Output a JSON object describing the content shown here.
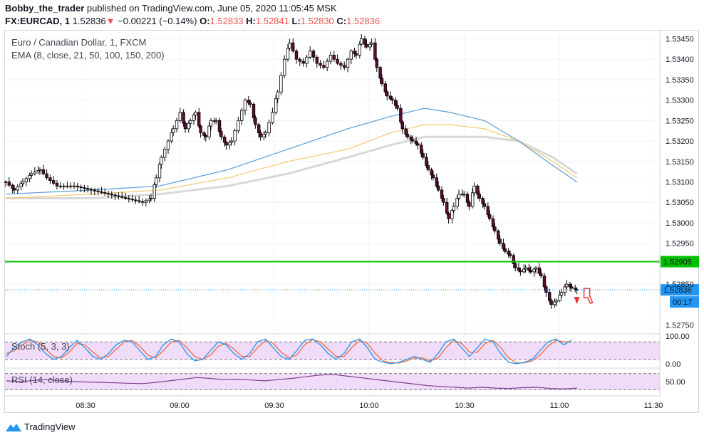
{
  "header": {
    "author": "Bobby_the_trader",
    "published": "published on TradingView.com, June 05, 2020 11:05:45 MSK",
    "symbol": "FX:EURCAD, 1",
    "last": "1.52836",
    "arrow": "▼",
    "change": "−0.00221 (−0.14%)",
    "o_label": "O:",
    "o_value": "1.52833",
    "h_label": "H:",
    "h_value": "1.52841",
    "l_label": "L:",
    "l_value": "1.52830",
    "c_label": "C:",
    "c_value": "1.52836"
  },
  "legend": {
    "line1": "Euro / Canadian Dollar, 1, FXCM",
    "line2": "EMA (8, close, 21, 50, 100, 150, 200)",
    "stoch": "Stoch (5, 3, 3)",
    "rsi": "RSI (14, close)"
  },
  "footer": {
    "brand": "TradingView"
  },
  "colors": {
    "up": "#ffffff",
    "down": "#5d0f3a",
    "level": "#00c000",
    "ema_fast": "#5b9bd5",
    "ema_mid": "#f5c96a",
    "ema_slow": "#d8d8d8",
    "stoch_k": "#2196f3",
    "stoch_d": "#ef6c3c",
    "rsi": "#7e3f8f",
    "band": "#f0dcf9",
    "price_tag": "#2196f3"
  },
  "chart_data": {
    "type": "candlestick",
    "x_ticks": [
      "08:30",
      "09:00",
      "09:30",
      "10:00",
      "10:30",
      "11:00",
      "11:30"
    ],
    "y_ticks": [
      "1.53450",
      "1.53400",
      "1.53350",
      "1.53300",
      "1.53250",
      "1.53200",
      "1.53150",
      "1.53100",
      "1.53050",
      "1.53000",
      "1.52950",
      "1.52850",
      "1.52750"
    ],
    "ylim": [
      1.5273,
      1.5347
    ],
    "level": {
      "value": 1.52905,
      "label": "1.52905"
    },
    "last_price": {
      "value": 1.52836,
      "label": "1.52836",
      "timer": "00:17"
    },
    "price_path": [
      [
        0,
        1.531
      ],
      [
        10,
        1.5308
      ],
      [
        20,
        1.531
      ],
      [
        30,
        1.5312
      ],
      [
        40,
        1.5313
      ],
      [
        48,
        1.5311
      ],
      [
        60,
        1.5309
      ],
      [
        80,
        1.5309
      ],
      [
        100,
        1.5308
      ],
      [
        120,
        1.5307
      ],
      [
        140,
        1.5306
      ],
      [
        160,
        1.5305
      ],
      [
        170,
        1.5306
      ],
      [
        176,
        1.5311
      ],
      [
        182,
        1.5316
      ],
      [
        190,
        1.532
      ],
      [
        196,
        1.5323
      ],
      [
        204,
        1.5327
      ],
      [
        210,
        1.5323
      ],
      [
        216,
        1.5325
      ],
      [
        222,
        1.5327
      ],
      [
        228,
        1.5322
      ],
      [
        234,
        1.5321
      ],
      [
        240,
        1.5325
      ],
      [
        246,
        1.5325
      ],
      [
        252,
        1.5321
      ],
      [
        258,
        1.5319
      ],
      [
        264,
        1.532
      ],
      [
        272,
        1.5325
      ],
      [
        280,
        1.533
      ],
      [
        286,
        1.5329
      ],
      [
        292,
        1.5324
      ],
      [
        298,
        1.5321
      ],
      [
        304,
        1.5322
      ],
      [
        312,
        1.5327
      ],
      [
        318,
        1.5332
      ],
      [
        326,
        1.534
      ],
      [
        332,
        1.5344
      ],
      [
        340,
        1.534
      ],
      [
        348,
        1.5339
      ],
      [
        356,
        1.5342
      ],
      [
        364,
        1.5339
      ],
      [
        372,
        1.5338
      ],
      [
        380,
        1.5341
      ],
      [
        388,
        1.5339
      ],
      [
        396,
        1.5338
      ],
      [
        404,
        1.5342
      ],
      [
        410,
        1.5341
      ],
      [
        416,
        1.5345
      ],
      [
        422,
        1.5343
      ],
      [
        428,
        1.5344
      ],
      [
        434,
        1.5338
      ],
      [
        440,
        1.5334
      ],
      [
        446,
        1.5331
      ],
      [
        452,
        1.533
      ],
      [
        458,
        1.5328
      ],
      [
        464,
        1.5323
      ],
      [
        470,
        1.5321
      ],
      [
        476,
        1.532
      ],
      [
        482,
        1.5319
      ],
      [
        488,
        1.5316
      ],
      [
        494,
        1.5313
      ],
      [
        500,
        1.5311
      ],
      [
        506,
        1.5308
      ],
      [
        512,
        1.5305
      ],
      [
        518,
        1.5301
      ],
      [
        524,
        1.5304
      ],
      [
        530,
        1.5307
      ],
      [
        536,
        1.5307
      ],
      [
        542,
        1.5304
      ],
      [
        548,
        1.5309
      ],
      [
        554,
        1.5306
      ],
      [
        560,
        1.5304
      ],
      [
        566,
        1.5301
      ],
      [
        572,
        1.5298
      ],
      [
        578,
        1.5295
      ],
      [
        584,
        1.5293
      ],
      [
        590,
        1.5292
      ],
      [
        596,
        1.5289
      ],
      [
        602,
        1.5288
      ],
      [
        608,
        1.5289
      ],
      [
        614,
        1.5288
      ],
      [
        620,
        1.5289
      ],
      [
        626,
        1.5287
      ],
      [
        632,
        1.5283
      ],
      [
        638,
        1.528
      ],
      [
        644,
        1.5281
      ],
      [
        650,
        1.5283
      ],
      [
        656,
        1.5285
      ],
      [
        662,
        1.5284
      ],
      [
        668,
        1.52836
      ]
    ],
    "ema_fast": [
      [
        0,
        1.5307
      ],
      [
        100,
        1.5308
      ],
      [
        180,
        1.5309
      ],
      [
        260,
        1.5313
      ],
      [
        330,
        1.5318
      ],
      [
        400,
        1.5323
      ],
      [
        450,
        1.5326
      ],
      [
        490,
        1.5328
      ],
      [
        520,
        1.5327
      ],
      [
        560,
        1.5325
      ],
      [
        600,
        1.532
      ],
      [
        640,
        1.5314
      ],
      [
        668,
        1.531
      ]
    ],
    "ema_mid": [
      [
        0,
        1.5306
      ],
      [
        100,
        1.5307
      ],
      [
        180,
        1.5308
      ],
      [
        260,
        1.5311
      ],
      [
        330,
        1.5315
      ],
      [
        400,
        1.5318
      ],
      [
        450,
        1.5322
      ],
      [
        490,
        1.5324
      ],
      [
        520,
        1.5324
      ],
      [
        560,
        1.5323
      ],
      [
        600,
        1.532
      ],
      [
        640,
        1.5315
      ],
      [
        668,
        1.5311
      ]
    ],
    "ema_slow": [
      [
        0,
        1.5306
      ],
      [
        100,
        1.5306
      ],
      [
        180,
        1.5307
      ],
      [
        260,
        1.5309
      ],
      [
        330,
        1.5312
      ],
      [
        400,
        1.5316
      ],
      [
        450,
        1.5319
      ],
      [
        490,
        1.5321
      ],
      [
        520,
        1.5321
      ],
      [
        560,
        1.5321
      ],
      [
        600,
        1.532
      ],
      [
        640,
        1.5316
      ],
      [
        668,
        1.5312
      ]
    ],
    "stoch": {
      "ticks": [
        "100.00",
        "0.00"
      ],
      "band": [
        20,
        80
      ],
      "k": [
        30,
        60,
        80,
        90,
        70,
        40,
        20,
        30,
        60,
        85,
        60,
        30,
        20,
        40,
        70,
        85,
        80,
        50,
        20,
        30,
        70,
        90,
        80,
        40,
        15,
        20,
        50,
        80,
        70,
        40,
        20,
        40,
        80,
        90,
        60,
        30,
        20,
        50,
        85,
        90,
        70,
        40,
        20,
        40,
        80,
        90,
        60,
        20,
        10,
        5,
        10,
        20,
        30,
        20,
        10,
        40,
        80,
        90,
        60,
        30,
        60,
        90,
        80,
        40,
        10,
        5,
        10,
        20,
        50,
        80,
        90,
        70,
        85
      ],
      "d": [
        40,
        50,
        70,
        85,
        80,
        55,
        30,
        25,
        45,
        75,
        70,
        45,
        25,
        30,
        55,
        80,
        85,
        65,
        35,
        25,
        50,
        80,
        85,
        60,
        30,
        20,
        35,
        65,
        75,
        55,
        30,
        30,
        60,
        85,
        75,
        45,
        25,
        35,
        70,
        88,
        80,
        55,
        30,
        30,
        60,
        85,
        75,
        40,
        15,
        8,
        8,
        15,
        25,
        25,
        15,
        25,
        60,
        85,
        75,
        45,
        45,
        75,
        85,
        60,
        25,
        8,
        8,
        15,
        35,
        65,
        85,
        80,
        80
      ]
    },
    "rsi": {
      "ticks": [
        "50.00"
      ],
      "band": [
        30,
        70
      ],
      "values": [
        52,
        50,
        53,
        55,
        52,
        50,
        49,
        48,
        47,
        46,
        45,
        48,
        52,
        56,
        60,
        58,
        55,
        56,
        54,
        52,
        55,
        58,
        62,
        66,
        68,
        64,
        60,
        56,
        52,
        48,
        44,
        40,
        38,
        36,
        34,
        36,
        34,
        33,
        35,
        36,
        33,
        32,
        34
      ]
    }
  }
}
